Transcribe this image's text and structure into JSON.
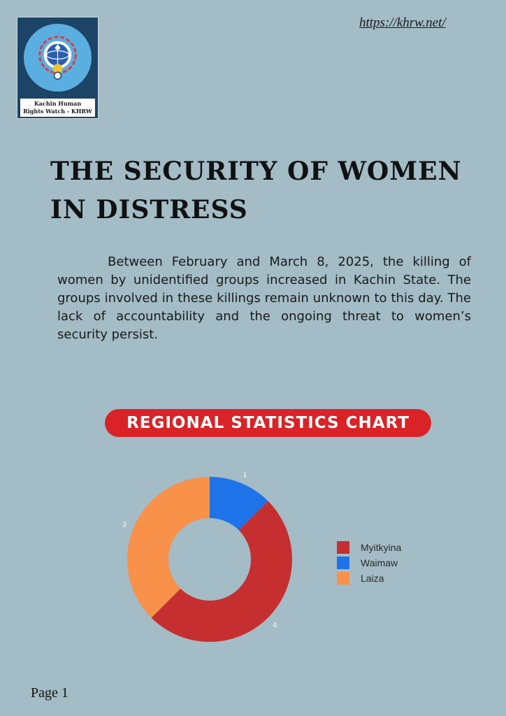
{
  "header": {
    "logo_caption_line1": "Kachin Human",
    "logo_caption_line2": "Rights Watch - KHRW",
    "url": "https://khrw.net/"
  },
  "document": {
    "title_line1": "THE SECURITY OF WOMEN",
    "title_line2": "IN DISTRESS",
    "intro": "Between February and March 8, 2025, the killing of women by unidentified groups increased in Kachin State. The groups involved in these killings remain unknown to this day. The lack of accountability and the ongoing threat to women’s security persist."
  },
  "chart_banner": "REGIONAL STATISTICS CHART",
  "chart_data": {
    "type": "pie",
    "style": "donut",
    "categories": [
      "Myitkyina",
      "Waimaw",
      "Laiza"
    ],
    "values": [
      4,
      1,
      3
    ],
    "colors": [
      "#c62f2f",
      "#1f73e8",
      "#f8914a"
    ],
    "legend": "right",
    "data_labels": [
      "4",
      "1",
      "3"
    ]
  },
  "footer": {
    "page": "Page 1"
  }
}
